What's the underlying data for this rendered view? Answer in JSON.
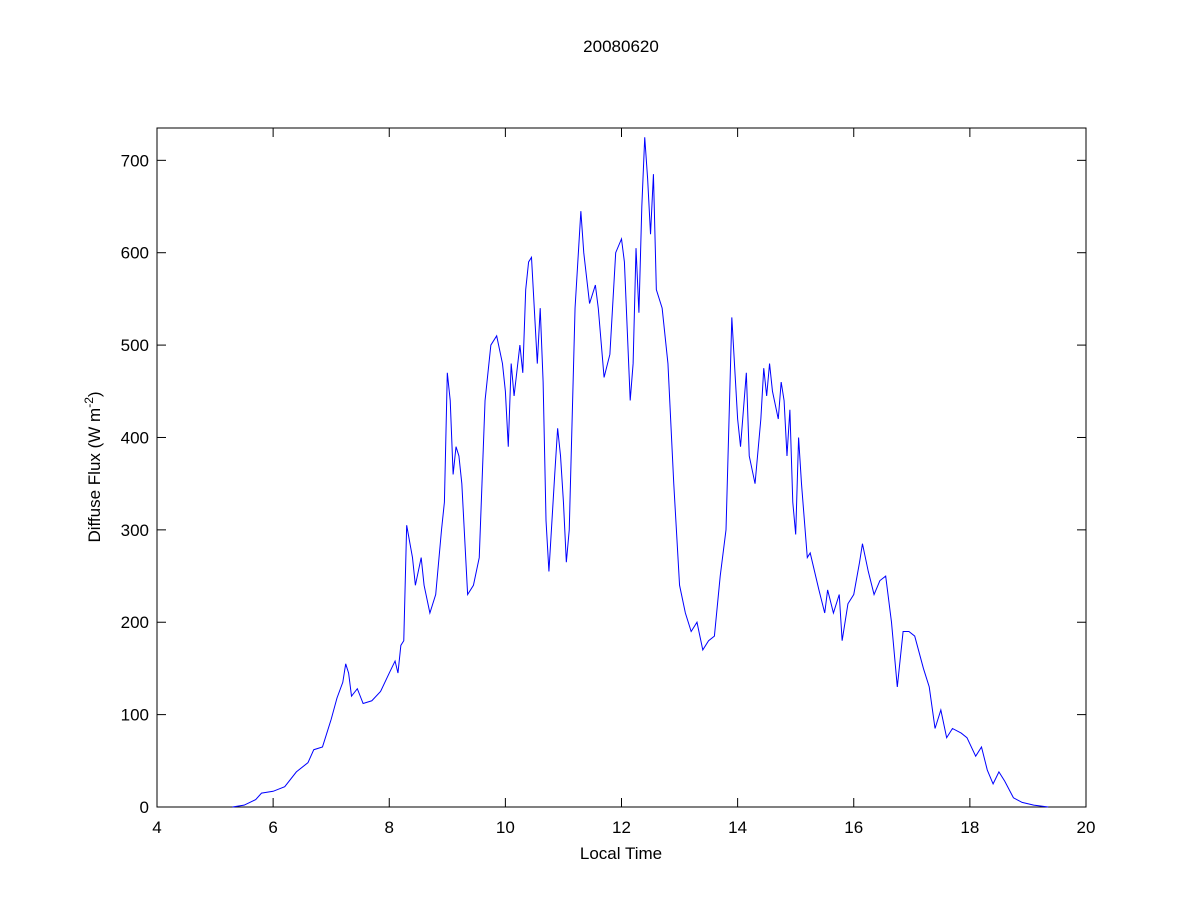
{
  "chart_data": {
    "type": "line",
    "title": "20080620",
    "x_label": "Local Time",
    "y_label": {
      "text": "Diffuse Flux (W m",
      "sup": "-2",
      "after": ")"
    },
    "color": "#0000ff",
    "xlim": [
      4,
      20
    ],
    "ylim": [
      0,
      735
    ],
    "xticks": [
      4,
      6,
      8,
      10,
      12,
      14,
      16,
      18,
      20
    ],
    "yticks": [
      0,
      100,
      200,
      300,
      400,
      500,
      600,
      700
    ],
    "grid": false,
    "x": [
      5.3,
      5.5,
      5.7,
      5.8,
      6.0,
      6.2,
      6.4,
      6.6,
      6.7,
      6.85,
      7.0,
      7.1,
      7.2,
      7.25,
      7.3,
      7.35,
      7.45,
      7.55,
      7.7,
      7.85,
      8.0,
      8.1,
      8.15,
      8.2,
      8.25,
      8.3,
      8.4,
      8.45,
      8.55,
      8.6,
      8.7,
      8.8,
      8.9,
      8.95,
      9.0,
      9.05,
      9.1,
      9.15,
      9.2,
      9.25,
      9.35,
      9.45,
      9.55,
      9.65,
      9.75,
      9.85,
      9.95,
      10.0,
      10.05,
      10.1,
      10.15,
      10.25,
      10.3,
      10.35,
      10.4,
      10.45,
      10.55,
      10.6,
      10.65,
      10.7,
      10.75,
      10.85,
      10.9,
      10.95,
      11.0,
      11.05,
      11.1,
      11.2,
      11.3,
      11.35,
      11.45,
      11.55,
      11.6,
      11.7,
      11.8,
      11.9,
      12.0,
      12.05,
      12.15,
      12.2,
      12.25,
      12.3,
      12.35,
      12.4,
      12.45,
      12.5,
      12.55,
      12.6,
      12.7,
      12.8,
      12.9,
      13.0,
      13.1,
      13.2,
      13.3,
      13.4,
      13.5,
      13.6,
      13.7,
      13.8,
      13.9,
      14.0,
      14.05,
      14.15,
      14.2,
      14.3,
      14.4,
      14.45,
      14.5,
      14.55,
      14.6,
      14.7,
      14.75,
      14.8,
      14.85,
      14.9,
      14.95,
      15.0,
      15.05,
      15.1,
      15.2,
      15.25,
      15.4,
      15.5,
      15.55,
      15.65,
      15.75,
      15.8,
      15.9,
      16.0,
      16.1,
      16.15,
      16.25,
      16.35,
      16.45,
      16.55,
      16.65,
      16.75,
      16.85,
      16.95,
      17.05,
      17.2,
      17.3,
      17.4,
      17.5,
      17.6,
      17.7,
      17.85,
      17.95,
      18.1,
      18.2,
      18.3,
      18.4,
      18.5,
      18.6,
      18.75,
      18.9,
      19.1,
      19.35
    ],
    "values": [
      0,
      2,
      8,
      15,
      17,
      22,
      38,
      48,
      62,
      65,
      95,
      118,
      135,
      155,
      145,
      120,
      128,
      112,
      115,
      125,
      145,
      158,
      145,
      175,
      180,
      305,
      270,
      240,
      270,
      240,
      210,
      230,
      300,
      330,
      470,
      440,
      360,
      390,
      380,
      350,
      230,
      240,
      270,
      440,
      500,
      510,
      480,
      450,
      390,
      480,
      445,
      500,
      470,
      560,
      590,
      595,
      480,
      540,
      460,
      310,
      255,
      360,
      410,
      380,
      330,
      265,
      300,
      540,
      645,
      600,
      545,
      565,
      540,
      465,
      490,
      600,
      615,
      590,
      440,
      480,
      605,
      535,
      650,
      725,
      680,
      620,
      685,
      560,
      540,
      480,
      350,
      240,
      210,
      190,
      200,
      170,
      180,
      185,
      250,
      300,
      530,
      420,
      390,
      470,
      380,
      350,
      420,
      475,
      445,
      480,
      450,
      420,
      460,
      440,
      380,
      430,
      330,
      295,
      400,
      350,
      270,
      275,
      235,
      210,
      235,
      210,
      230,
      180,
      220,
      230,
      265,
      285,
      255,
      230,
      245,
      250,
      200,
      130,
      190,
      190,
      185,
      150,
      130,
      85,
      105,
      75,
      85,
      80,
      75,
      55,
      65,
      40,
      25,
      38,
      28,
      10,
      5,
      2,
      0
    ]
  }
}
